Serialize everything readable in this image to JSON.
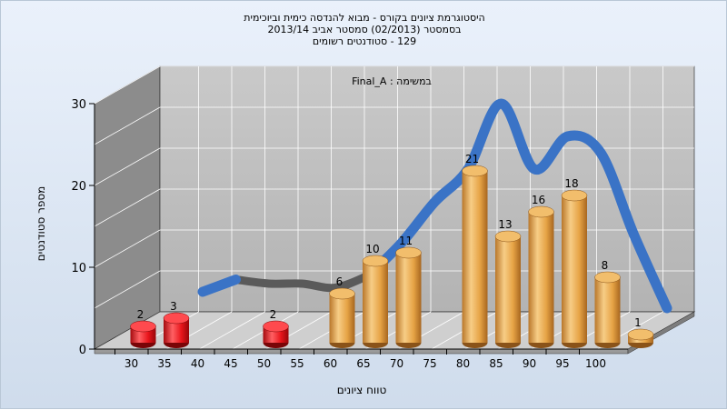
{
  "chart_data": {
    "type": "bar",
    "title_lines": [
      "היסטוגרמת ציונים בקורס - מבוא להנדסה כימית וביוכימית",
      "בסמסטר  (02/2013)  סמסטר אביב 2013/14",
      "129 - סטודנטים רשומים"
    ],
    "annotation": "במשימה : Final_A",
    "xlabel": "טווח ציונים",
    "ylabel": "מספר סטודנטים",
    "ylim": [
      0,
      30
    ],
    "yticks": [
      0,
      10,
      20,
      30
    ],
    "x_ticks": [
      30,
      35,
      40,
      45,
      50,
      55,
      60,
      65,
      70,
      75,
      80,
      85,
      90,
      95,
      100
    ],
    "grid": true,
    "bars": [
      {
        "x": 30,
        "value": 2,
        "color": "red"
      },
      {
        "x": 35,
        "value": 3,
        "color": "red"
      },
      {
        "x": 50,
        "value": 2,
        "color": "red"
      },
      {
        "x": 60,
        "value": 6,
        "color": "orange"
      },
      {
        "x": 65,
        "value": 10,
        "color": "orange"
      },
      {
        "x": 70,
        "value": 11,
        "color": "orange"
      },
      {
        "x": 80,
        "value": 21,
        "color": "orange"
      },
      {
        "x": 85,
        "value": 13,
        "color": "orange"
      },
      {
        "x": 90,
        "value": 16,
        "color": "orange"
      },
      {
        "x": 95,
        "value": 18,
        "color": "orange"
      },
      {
        "x": 100,
        "value": 8,
        "color": "orange"
      },
      {
        "x": 105,
        "value": 1,
        "color": "orange"
      }
    ],
    "trend": {
      "x": [
        35,
        40,
        45,
        50,
        55,
        60,
        65,
        70,
        75,
        80,
        85,
        90,
        95,
        100,
        105
      ],
      "y": [
        3,
        4.5,
        4,
        4,
        3.5,
        5,
        9,
        14,
        18,
        26,
        18,
        22,
        20,
        10,
        1
      ]
    },
    "colors": {
      "red_bar": "#e8151b",
      "orange_bar": "#e6a345",
      "trend": "#3a73c6",
      "trend_low": "#5a5a5a",
      "back_wall": "#bfbfbf",
      "side_wall": "#8c8c8c",
      "floor": "#cfcfcf"
    }
  }
}
